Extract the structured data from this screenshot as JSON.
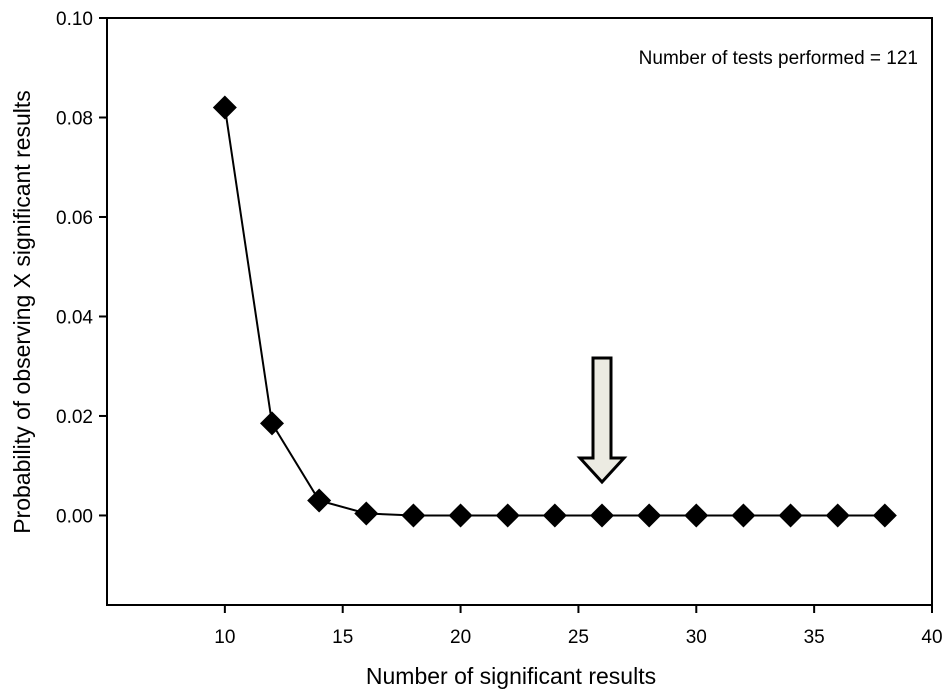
{
  "chart_data": {
    "type": "line",
    "title": "",
    "xlabel": "Number of significant results",
    "ylabel": "Probability of observing X significant results",
    "xlim": [
      5,
      40
    ],
    "ylim": [
      -0.018,
      0.1
    ],
    "xticks": [
      10,
      15,
      20,
      25,
      30,
      35,
      40
    ],
    "yticks": [
      0.0,
      0.02,
      0.04,
      0.06,
      0.08,
      0.1
    ],
    "ytick_labels": [
      "0.00",
      "0.02",
      "0.04",
      "0.06",
      "0.08",
      "0.10"
    ],
    "grid": false,
    "marker": "diamond",
    "series": [
      {
        "x": [
          10,
          12,
          14,
          16,
          18,
          20,
          22,
          24,
          26,
          28,
          30,
          32,
          34,
          36,
          38
        ],
        "y": [
          0.082,
          0.0185,
          0.003,
          0.0004,
          0.0,
          0.0,
          0.0,
          0.0,
          0.0,
          0.0,
          0.0,
          0.0,
          0.0,
          0.0,
          0.0
        ]
      }
    ],
    "annotations": [
      {
        "text": "Number of tests performed = 121",
        "placement": "top-right"
      }
    ],
    "arrow": {
      "x": 26,
      "direction": "down",
      "fill": "#ecebe2"
    }
  }
}
